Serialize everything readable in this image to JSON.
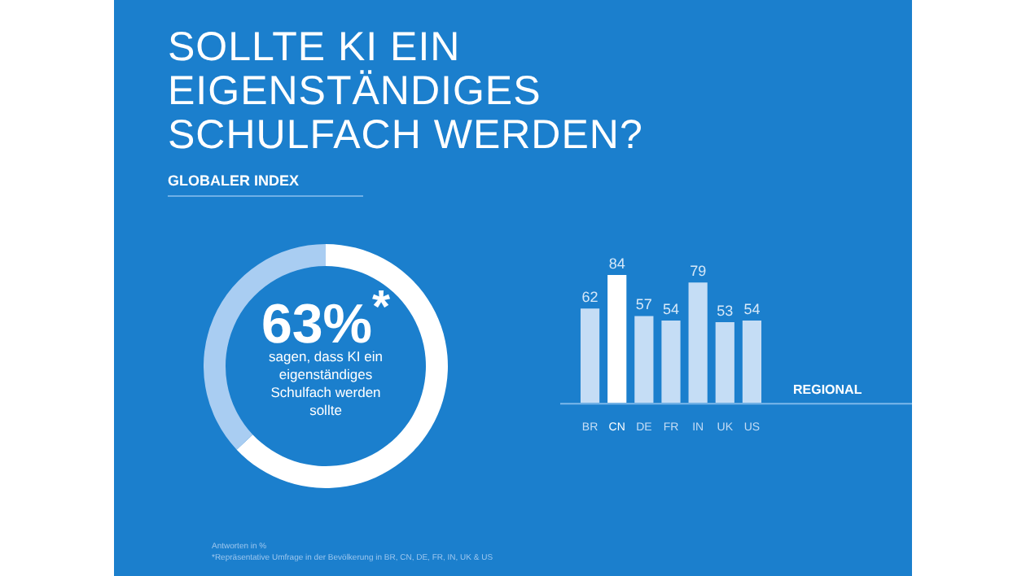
{
  "chart_data": [
    {
      "type": "donut",
      "title": "SOLLTE KI EIN EIGENSTÄNDIGES SCHULFACH WERDEN?",
      "subtitle": "GLOBALER INDEX",
      "categories": [
        null,
        null
      ],
      "values": [
        63,
        37
      ],
      "colors": [
        "#ffffff",
        "#a9cdf2"
      ],
      "legend": false,
      "annotations": [
        "63%$^{*}$",
        "sagen, dass KI ein eigenständiges Schulfach werden sollte",
        "Antworten in %",
        "*Repräsentative Umfrage in der Bevölkerung in BR, CN, DE, FR, IN, UK & US"
      ]
    },
    {
      "type": "bar",
      "annotations": [
        "REGIONAL"
      ],
      "categories": [
        "BR",
        "CN",
        "DE",
        "FR",
        "IN",
        "UK",
        "US"
      ],
      "values": [
        62,
        84,
        57,
        54,
        79,
        53,
        54
      ],
      "colors": [
        "#c5ddf5",
        "#ffffff",
        "#c5ddf5",
        "#c5ddf5",
        "#c5ddf5",
        "#c5ddf5",
        "#c5ddf5"
      ],
      "data_labels": true,
      "legend": false
    }
  ]
}
